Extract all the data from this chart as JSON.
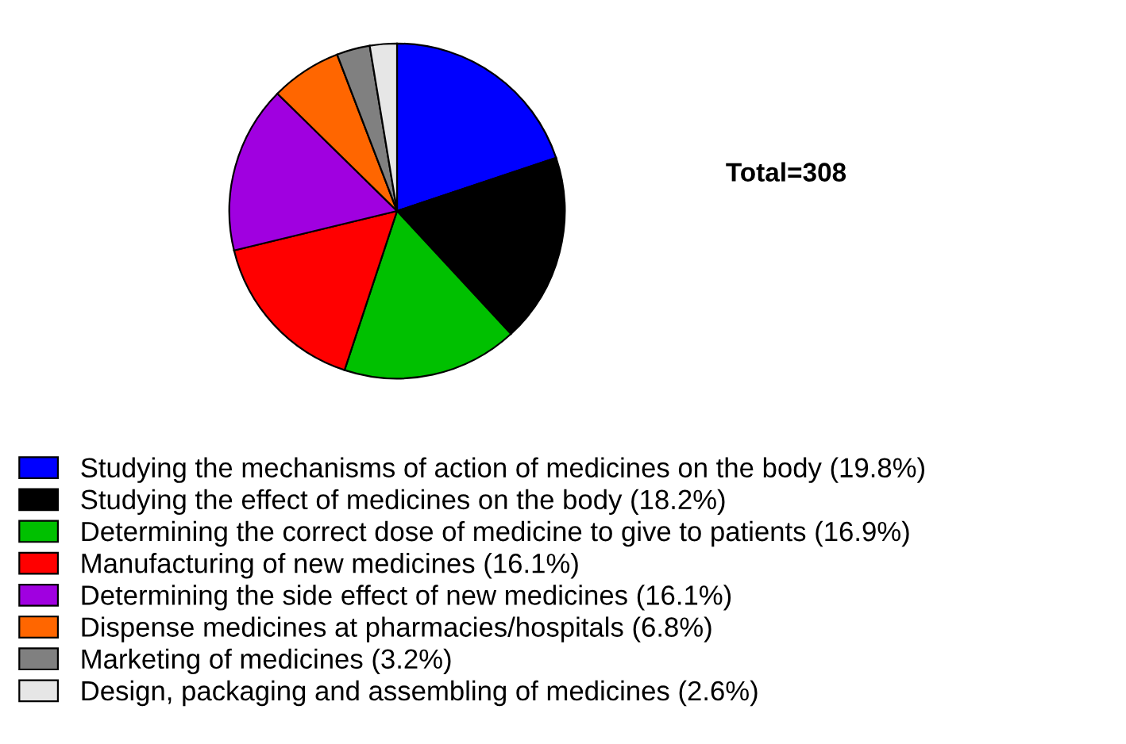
{
  "chart_data": {
    "type": "pie",
    "categories": [
      "Studying the mechanisms of action of medicines on the body (19.8%)",
      "Studying the effect of medicines on the body (18.2%)",
      "Determining the correct dose of medicine to give to patients (16.9%)",
      "Manufacturing of new medicines (16.1%)",
      "Determining the side effect of new medicines (16.1%)",
      "Dispense medicines at pharmacies/hospitals (6.8%)",
      "Marketing of medicines (3.2%)",
      "Design, packaging and assembling of medicines (2.6%)"
    ],
    "values": [
      19.8,
      18.2,
      16.9,
      16.1,
      16.1,
      6.8,
      3.2,
      2.6
    ],
    "colors": [
      "#0000ff",
      "#000000",
      "#00c000",
      "#ff0000",
      "#a000e0",
      "#ff6600",
      "#808080",
      "#e6e6e6"
    ],
    "annotations": [
      "Total=308"
    ],
    "legend": "bottom"
  }
}
